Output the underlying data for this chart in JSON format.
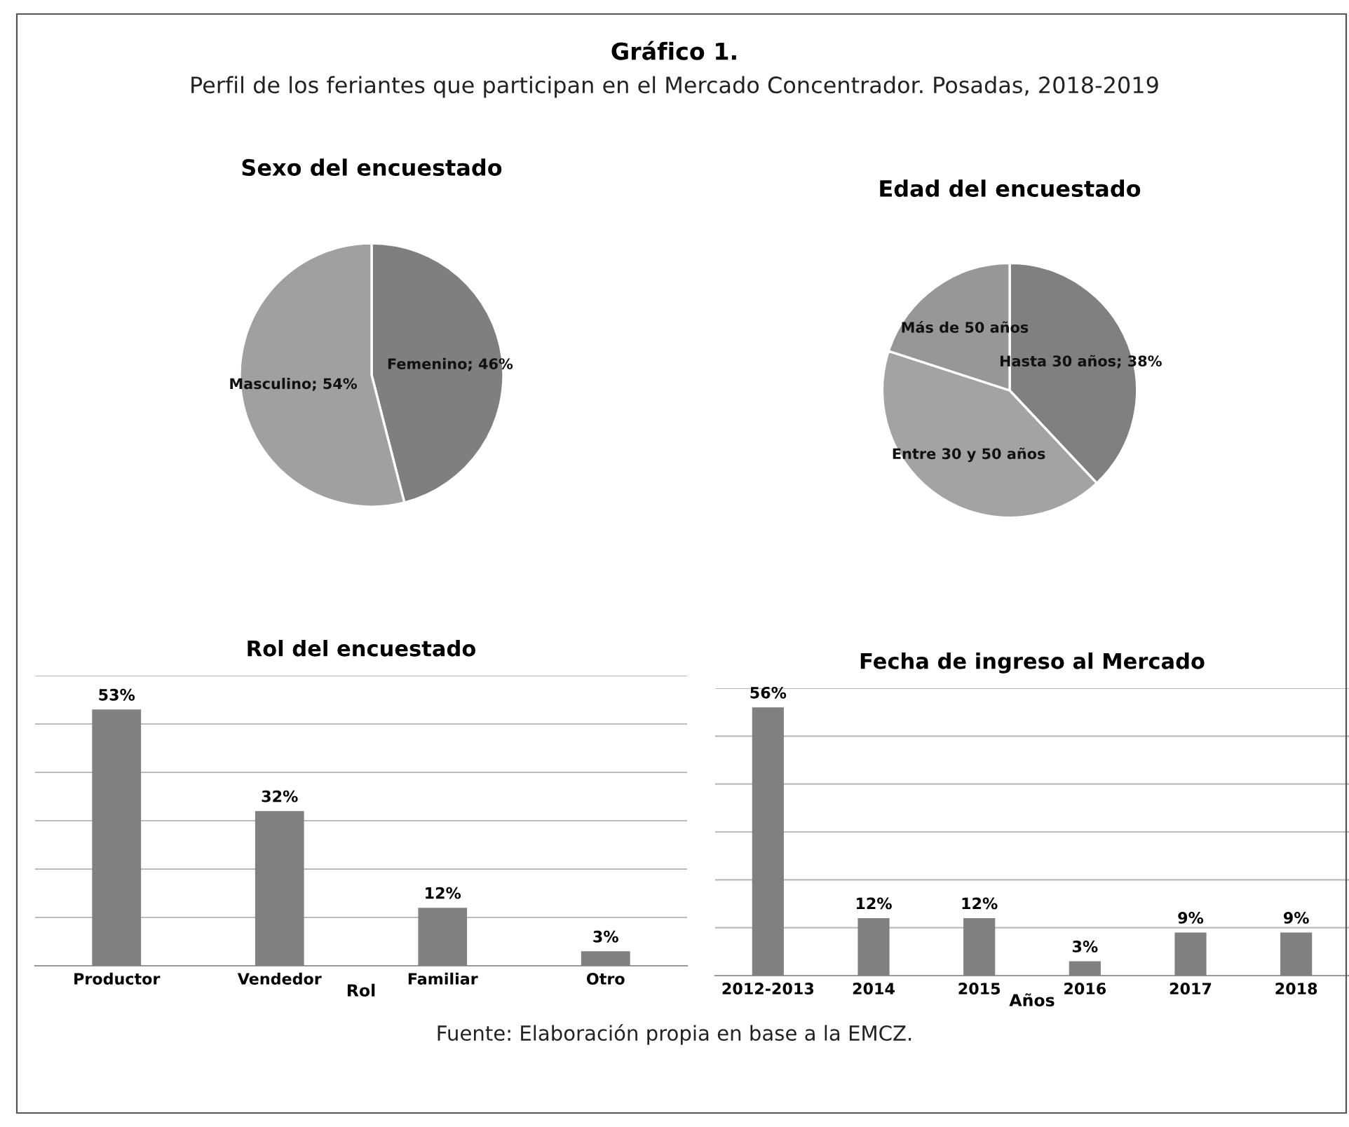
{
  "chart_data": [
    {
      "type": "other",
      "title": "Gráfico 1.",
      "subtitle": "Perfil de los feriantes que participan en el Mercado Concentrador. Posadas, 2018-2019",
      "annotations": [
        "Fuente: Elaboración propia en base a la EMCZ."
      ]
    },
    {
      "type": "pie",
      "title": "Sexo del encuestado",
      "categories": [
        "Femenino",
        "Masculino"
      ],
      "values": [
        46,
        54
      ],
      "value_labels": [
        "46%",
        "54%"
      ],
      "colors": [
        "#7f7f7f",
        "#a0a0a0"
      ]
    },
    {
      "type": "pie",
      "title": "Edad del encuestado",
      "categories": [
        "Hasta 30 años",
        "Entre 30 y 50 años",
        "Más de 50 años"
      ],
      "values": [
        38,
        42,
        20
      ],
      "value_labels": [
        "38%",
        null,
        null
      ],
      "colors": [
        "#808080",
        "#a3a3a3",
        "#979797"
      ]
    },
    {
      "type": "bar",
      "title": "Rol del encuestado",
      "xlabel": "Rol",
      "categories": [
        "Productor",
        "Vendedor",
        "Familiar",
        "Otro"
      ],
      "values": [
        53,
        32,
        12,
        3
      ],
      "value_labels": [
        "53%",
        "32%",
        "12%",
        "3%"
      ],
      "color": "#808080",
      "ylim": [
        0,
        60
      ],
      "yticks": [
        {
          "value": 0,
          "label": null
        },
        {
          "value": 10,
          "label": null
        },
        {
          "value": 20,
          "label": null
        },
        {
          "value": 30,
          "label": null
        },
        {
          "value": 40,
          "label": null
        },
        {
          "value": 50,
          "label": null
        },
        {
          "value": 60,
          "label": null
        }
      ],
      "grid": "y",
      "tick_labels": "x"
    },
    {
      "type": "bar",
      "title": "Fecha de ingreso al Mercado",
      "xlabel": "Años",
      "categories": [
        "2012-2013",
        "2014",
        "2015",
        "2016",
        "2017",
        "2018"
      ],
      "values": [
        56,
        12,
        12,
        3,
        9,
        9
      ],
      "value_labels": [
        "56%",
        "12%",
        "12%",
        "3%",
        "9%",
        "9%"
      ],
      "color": "#808080",
      "ylim": [
        0,
        60
      ],
      "yticks": [
        {
          "value": 0,
          "label": null
        },
        {
          "value": 10,
          "label": null
        },
        {
          "value": 20,
          "label": null
        },
        {
          "value": 30,
          "label": null
        },
        {
          "value": 40,
          "label": null
        },
        {
          "value": 50,
          "label": null
        },
        {
          "value": 60,
          "label": null
        }
      ],
      "grid": "y",
      "tick_labels": "x"
    }
  ]
}
